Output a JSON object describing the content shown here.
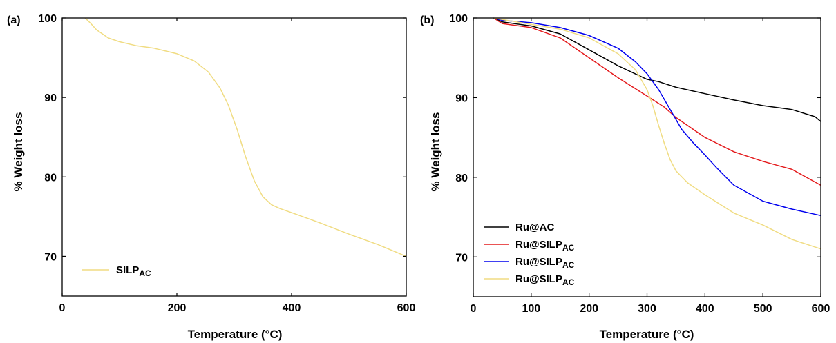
{
  "chart_data": [
    {
      "panel_label": "(a)",
      "type": "line",
      "xlabel": "Temperature",
      "xlabel_unit": "(°C)",
      "ylabel": "% Weight loss",
      "xlim": [
        0,
        600
      ],
      "ylim": [
        65,
        100
      ],
      "xticks": [
        0,
        200,
        400,
        600
      ],
      "yticks": [
        70,
        80,
        90,
        100
      ],
      "grid": false,
      "legend_position": "bottom-left",
      "series": [
        {
          "name": "SILP",
          "name_sub": "AC",
          "color": "#f0dc82",
          "x": [
            40,
            50,
            60,
            80,
            100,
            130,
            160,
            200,
            230,
            255,
            275,
            290,
            305,
            320,
            335,
            350,
            365,
            380,
            400,
            450,
            500,
            550,
            600
          ],
          "y": [
            100,
            99.3,
            98.5,
            97.5,
            97.0,
            96.5,
            96.2,
            95.5,
            94.6,
            93.2,
            91.2,
            89.0,
            86.0,
            82.5,
            79.5,
            77.5,
            76.5,
            76.0,
            75.5,
            74.2,
            72.8,
            71.5,
            70.0
          ]
        }
      ]
    },
    {
      "panel_label": "(b)",
      "type": "line",
      "xlabel": "Temperature",
      "xlabel_unit": "(°C)",
      "ylabel": "% Weight loss",
      "xlim": [
        0,
        600
      ],
      "ylim": [
        65,
        100
      ],
      "xticks": [
        0,
        100,
        200,
        300,
        400,
        500,
        600
      ],
      "yticks": [
        70,
        80,
        90,
        100
      ],
      "grid": false,
      "legend_position": "bottom-left",
      "series": [
        {
          "name": "Ru@AC",
          "name_sub": "",
          "color": "#000000",
          "x": [
            35,
            50,
            100,
            150,
            200,
            250,
            300,
            320,
            350,
            400,
            450,
            500,
            550,
            590,
            600
          ],
          "y": [
            100,
            99.5,
            99.0,
            98.0,
            96.0,
            94.0,
            92.3,
            92.0,
            91.3,
            90.5,
            89.7,
            89.0,
            88.5,
            87.6,
            87.0
          ]
        },
        {
          "name": "Ru@SILP",
          "name_sub": "AC",
          "color": "#e41a1c",
          "x": [
            35,
            50,
            100,
            150,
            200,
            250,
            300,
            330,
            350,
            400,
            450,
            500,
            550,
            600
          ],
          "y": [
            100,
            99.3,
            98.8,
            97.5,
            95.0,
            92.5,
            90.2,
            88.8,
            87.5,
            85.0,
            83.2,
            82.0,
            81.0,
            79.0
          ]
        },
        {
          "name": "Ru@SILP",
          "name_sub": "AC",
          "color": "#0000ee",
          "x": [
            35,
            50,
            100,
            150,
            200,
            250,
            280,
            300,
            320,
            340,
            360,
            380,
            400,
            420,
            450,
            500,
            550,
            600
          ],
          "y": [
            100,
            99.7,
            99.4,
            98.8,
            97.8,
            96.2,
            94.5,
            93.0,
            91.0,
            88.5,
            86.0,
            84.3,
            82.8,
            81.2,
            79.0,
            77.0,
            76.0,
            75.2
          ]
        },
        {
          "name": "Ru@SILP",
          "name_sub": "AC",
          "color": "#f0dc82",
          "x": [
            35,
            50,
            100,
            150,
            200,
            250,
            280,
            300,
            310,
            320,
            330,
            340,
            350,
            370,
            400,
            450,
            500,
            550,
            600
          ],
          "y": [
            100,
            99.8,
            99.2,
            98.6,
            97.5,
            95.5,
            93.5,
            91.0,
            89.0,
            86.5,
            84.2,
            82.2,
            80.8,
            79.3,
            77.8,
            75.5,
            74.0,
            72.2,
            71.0
          ]
        }
      ]
    }
  ]
}
